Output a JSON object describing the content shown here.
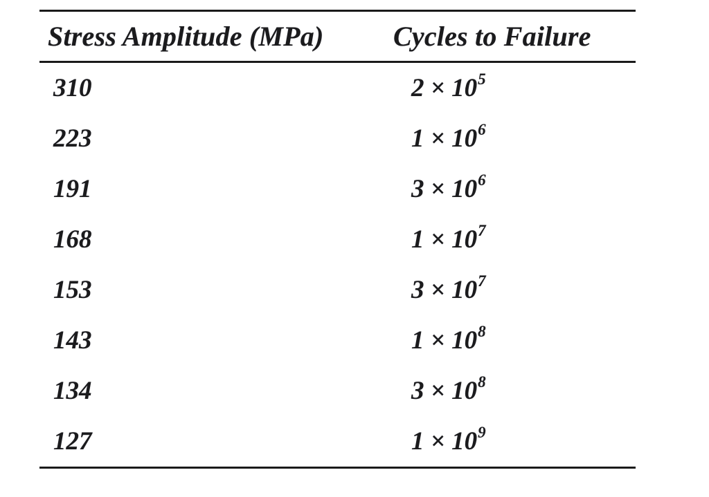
{
  "page": {
    "background_color": "#ffffff",
    "text_color": "#1b1b1d",
    "rule_color": "#1a1a1a"
  },
  "table": {
    "headers": [
      "Stress Amplitude (MPa)",
      "Cycles to Failure"
    ],
    "rows": [
      {
        "stress": "310",
        "cycles_base": "2 × 10",
        "cycles_exp": "5"
      },
      {
        "stress": "223",
        "cycles_base": "1 × 10",
        "cycles_exp": "6"
      },
      {
        "stress": "191",
        "cycles_base": "3 × 10",
        "cycles_exp": "6"
      },
      {
        "stress": "168",
        "cycles_base": "1 × 10",
        "cycles_exp": "7"
      },
      {
        "stress": "153",
        "cycles_base": "3 × 10",
        "cycles_exp": "7"
      },
      {
        "stress": "143",
        "cycles_base": "1 × 10",
        "cycles_exp": "8"
      },
      {
        "stress": "134",
        "cycles_base": "3 × 10",
        "cycles_exp": "8"
      },
      {
        "stress": "127",
        "cycles_base": "1 × 10",
        "cycles_exp": "9"
      }
    ]
  }
}
